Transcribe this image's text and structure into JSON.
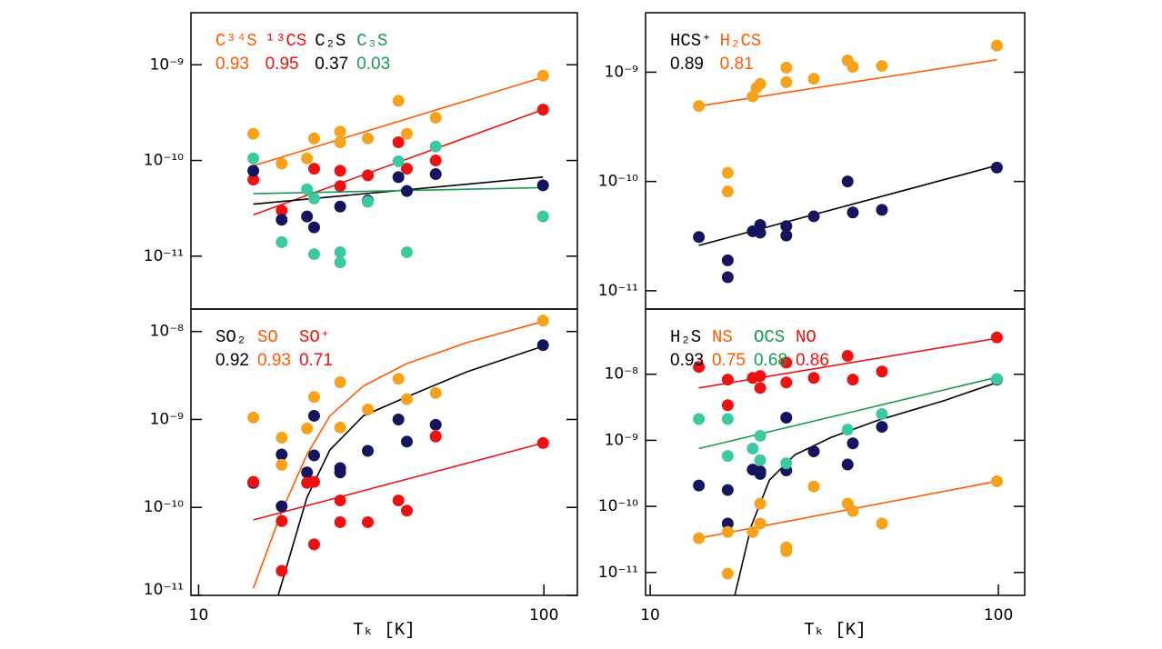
{
  "chart_data": [
    {
      "type": "scatter",
      "xlim": [
        9.5,
        125
      ],
      "ylim": [
        2.8e-12,
        3.5e-09
      ],
      "log": true,
      "yticks": [
        {
          "value": 1e-11,
          "label": "10⁻¹¹"
        },
        {
          "value": 1e-10,
          "label": "10⁻¹⁰"
        },
        {
          "value": 1e-09,
          "label": "10⁻⁹"
        }
      ],
      "series": [
        {
          "name": "C³⁴S",
          "color": "#f7a21b",
          "line_color": "#ff5a00",
          "r": 0.93,
          "x": [
            14.4,
            17.4,
            20.6,
            21.6,
            25.7,
            25.7,
            30.9,
            37.9,
            40.1,
            48.6,
            99.4
          ],
          "values": [
            1.9e-10,
            9.3e-11,
            1.05e-10,
            1.7e-10,
            2e-10,
            1.55e-10,
            1.7e-10,
            4.2e-10,
            1.9e-10,
            2.8e-10,
            7.7e-10
          ],
          "fit_x": [
            14.4,
            99.4
          ],
          "fit_values": [
            8.8e-11,
            7.4e-10
          ]
        },
        {
          "name": "¹³CS",
          "color": "#ee1111",
          "line_color": "#ee1111",
          "r": 0.95,
          "x": [
            14.4,
            17.4,
            21.6,
            25.7,
            25.7,
            30.9,
            37.9,
            40.1,
            48.6,
            99.4
          ],
          "values": [
            6.3e-11,
            3e-11,
            8.2e-11,
            7.8e-11,
            5.4e-11,
            7e-11,
            1.55e-10,
            8.2e-11,
            1e-10,
            3.4e-10
          ],
          "fit_x": [
            14.4,
            99.4
          ],
          "fit_values": [
            2.7e-11,
            3.4e-10
          ]
        },
        {
          "name": "C₂S",
          "color": "#15155e",
          "line_color": "#000000",
          "r": 0.37,
          "x": [
            14.4,
            17.4,
            20.6,
            21.6,
            25.7,
            30.9,
            37.9,
            40.1,
            48.6,
            99.4
          ],
          "values": [
            7.8e-11,
            2.4e-11,
            2.6e-11,
            2e-11,
            3.3e-11,
            3.8e-11,
            6.7e-11,
            4.8e-11,
            7.2e-11,
            5.5e-11
          ],
          "fit_x": [
            14.4,
            99.4
          ],
          "fit_values": [
            3.5e-11,
            6.7e-11
          ]
        },
        {
          "name": "C₃S",
          "color": "#3cc9a0",
          "line_color": "#1a9a50",
          "r": 0.03,
          "x": [
            14.4,
            17.4,
            20.6,
            21.6,
            21.6,
            25.7,
            25.7,
            30.9,
            40.1,
            37.9,
            48.6,
            99.4
          ],
          "values": [
            1.05e-10,
            1.4e-11,
            5e-11,
            1.05e-11,
            4e-11,
            1.1e-11,
            8.6e-12,
            3.7e-11,
            1.1e-11,
            9.8e-11,
            1.4e-10,
            2.6e-11
          ],
          "fit_x": [
            14.4,
            99.4
          ],
          "fit_values": [
            4.5e-11,
            5.2e-11
          ]
        }
      ]
    },
    {
      "type": "scatter",
      "xlim": [
        9.7,
        119
      ],
      "ylim": [
        6.8e-12,
        3.5e-09
      ],
      "log": true,
      "yticks": [
        {
          "value": 1e-11,
          "label": "10⁻¹¹"
        },
        {
          "value": 1e-10,
          "label": "10⁻¹⁰"
        },
        {
          "value": 1e-09,
          "label": "10⁻⁹"
        }
      ],
      "series": [
        {
          "name": "HCS⁺",
          "color": "#15155e",
          "line_color": "#000000",
          "r": 0.89,
          "x": [
            13.8,
            16.7,
            16.7,
            19.7,
            20.7,
            20.7,
            24.6,
            24.6,
            29.5,
            36.9,
            38.2,
            46.3,
            99
          ],
          "values": [
            3.1e-11,
            1.9e-11,
            1.33e-11,
            3.5e-11,
            4e-11,
            3.4e-11,
            3.9e-11,
            3.2e-11,
            4.8e-11,
            1e-10,
            5.2e-11,
            5.5e-11,
            1.34e-10
          ],
          "fit_x": [
            13.8,
            99
          ],
          "fit_values": [
            2.6e-11,
            1.4e-10
          ]
        },
        {
          "name": "H₂CS",
          "color": "#f7a21b",
          "line_color": "#ff5a00",
          "r": 0.81,
          "x": [
            13.8,
            19.7,
            20.2,
            20.7,
            24.6,
            24.6,
            29.5,
            36.9,
            38.2,
            46.3,
            99,
            16.7,
            16.7
          ],
          "values": [
            4.9e-10,
            6e-10,
            7.2e-10,
            7.8e-10,
            1.1e-09,
            8.1e-10,
            8.7e-10,
            1.28e-09,
            1.12e-09,
            1.14e-09,
            1.75e-09,
            1.2e-10,
            8.1e-11
          ],
          "fit_x": [
            13.8,
            99
          ],
          "fit_values": [
            4.9e-10,
            1.3e-09
          ]
        }
      ]
    },
    {
      "type": "scatter",
      "xlim": [
        9.5,
        125
      ],
      "ylim": [
        1e-11,
        1.8e-08
      ],
      "log": true,
      "xticks": [
        10,
        100
      ],
      "xlabel": "Tₖ [K]",
      "yticks": [
        {
          "value": 1e-11,
          "label": "10⁻¹¹"
        },
        {
          "value": 1e-10,
          "label": "10⁻¹⁰"
        },
        {
          "value": 1e-09,
          "label": "10⁻⁹"
        },
        {
          "value": 1e-08,
          "label": "10⁻⁸"
        }
      ],
      "series": [
        {
          "name": "SO₂",
          "color": "#15155e",
          "line_color": "#000000",
          "r": 0.92,
          "x": [
            14.4,
            17.4,
            17.4,
            20.6,
            21.6,
            21.6,
            25.7,
            25.7,
            30.9,
            37.9,
            40.1,
            48.6,
            99.4
          ],
          "values": [
            1.9e-10,
            4e-10,
            1.03e-10,
            2.5e-10,
            1.1e-09,
            3.9e-10,
            2.8e-10,
            2.5e-10,
            4.4e-10,
            1e-09,
            5.6e-10,
            8.7e-10,
            7e-09
          ],
          "fit_x": [
            17,
            20.6,
            24,
            30,
            40,
            60,
            99.4
          ],
          "fit_values": [
            1e-11,
            1.3e-10,
            4.5e-10,
            1.1e-09,
            1.8e-09,
            3.5e-09,
            6.8e-09
          ]
        },
        {
          "name": "SO",
          "color": "#f7a21b",
          "line_color": "#ff5a00",
          "r": 0.93,
          "x": [
            14.4,
            17.4,
            17.4,
            20.6,
            21.6,
            25.7,
            25.7,
            30.9,
            37.9,
            40.1,
            48.6,
            48.6,
            99.4
          ],
          "values": [
            1.05e-09,
            6.2e-10,
            3.05e-10,
            7.9e-10,
            1.8e-09,
            2.65e-09,
            8.1e-10,
            1.3e-09,
            2.9e-09,
            1.7e-09,
            2e-09,
            6.5e-10,
            1.33e-08
          ],
          "fit_x": [
            14.4,
            17.4,
            20.6,
            24,
            30,
            40,
            60,
            99.4
          ],
          "fit_values": [
            1.2e-11,
            9e-11,
            4e-10,
            1.1e-09,
            2.4e-09,
            4.3e-09,
            7.5e-09,
            1.3e-08
          ]
        },
        {
          "name": "SO⁺",
          "color": "#ee1111",
          "line_color": "#ee1111",
          "r": 0.71,
          "x": [
            14.4,
            17.4,
            17.4,
            20.6,
            21.6,
            21.6,
            25.7,
            25.7,
            30.9,
            37.9,
            40.1,
            48.6,
            99.4
          ],
          "values": [
            1.95e-10,
            7e-11,
            1.9e-11,
            1.9e-10,
            1.95e-10,
            3.8e-11,
            1.2e-10,
            6.8e-11,
            6.8e-11,
            1.2e-10,
            9.2e-11,
            6.4e-10,
            5.4e-10
          ],
          "fit_x": [
            14.4,
            99.4
          ],
          "fit_values": [
            7.2e-11,
            5.4e-10
          ]
        }
      ]
    },
    {
      "type": "scatter",
      "xlim": [
        9.7,
        119
      ],
      "ylim": [
        4.5e-12,
        9.7e-08
      ],
      "log": true,
      "xticks": [
        10,
        100
      ],
      "xlabel": "Tₖ [K]",
      "yticks": [
        {
          "value": 1e-11,
          "label": "10⁻¹¹"
        },
        {
          "value": 1e-10,
          "label": "10⁻¹⁰"
        },
        {
          "value": 1e-09,
          "label": "10⁻⁹"
        },
        {
          "value": 1e-08,
          "label": "10⁻⁸"
        }
      ],
      "series": [
        {
          "name": "H₂S",
          "color": "#15155e",
          "line_color": "#000000",
          "r": 0.93,
          "x": [
            13.8,
            16.7,
            16.7,
            19.7,
            20.7,
            20.7,
            24.6,
            24.6,
            29.5,
            36.9,
            38.2,
            46.3,
            99
          ],
          "values": [
            2.07e-10,
            1.77e-10,
            5.5e-11,
            3.6e-10,
            3.4e-10,
            3.1e-10,
            2.2e-09,
            3.5e-10,
            6.8e-10,
            4.3e-10,
            9e-10,
            1.6e-09,
            8.3e-09
          ],
          "fit_x": [
            17.5,
            19.5,
            22,
            26,
            33,
            45,
            70,
            99
          ],
          "fit_values": [
            4.5e-12,
            5e-11,
            2.5e-10,
            6e-10,
            1.1e-09,
            2e-09,
            4e-09,
            7.5e-09
          ]
        },
        {
          "name": "NS",
          "color": "#f7a21b",
          "line_color": "#ff5a00",
          "r": 0.75,
          "x": [
            13.8,
            16.7,
            16.7,
            19.7,
            20.7,
            20.7,
            24.6,
            24.6,
            29.5,
            36.9,
            38.2,
            46.3,
            99
          ],
          "values": [
            3.3e-11,
            9.6e-12,
            4.1e-11,
            4.1e-11,
            1.1e-10,
            5.5e-11,
            2.4e-11,
            2.1e-11,
            2e-10,
            1.1e-10,
            8.5e-11,
            5.5e-11,
            2.4e-10
          ],
          "fit_x": [
            13.8,
            99
          ],
          "fit_values": [
            3.3e-11,
            2.4e-10
          ]
        },
        {
          "name": "OCS",
          "color": "#3cc9a0",
          "line_color": "#1a9a50",
          "r": 0.68,
          "x": [
            13.8,
            16.7,
            16.7,
            19.7,
            20.7,
            20.7,
            24.6,
            36.9,
            46.3,
            99
          ],
          "values": [
            2.1e-09,
            2.1e-09,
            5.8e-10,
            7.5e-10,
            1.17e-09,
            5e-10,
            4.5e-10,
            1.45e-09,
            2.5e-09,
            8.5e-09
          ],
          "fit_x": [
            13.8,
            99
          ],
          "fit_values": [
            7.5e-10,
            9e-09
          ]
        },
        {
          "name": "NO",
          "color": "#ee1111",
          "line_color": "#ee1111",
          "r": 0.86,
          "x": [
            13.8,
            16.7,
            16.7,
            19.7,
            20.7,
            20.7,
            24.6,
            24.6,
            29.5,
            36.9,
            38.2,
            46.3,
            99
          ],
          "values": [
            1.29e-08,
            8.3e-09,
            3.4e-09,
            8.8e-09,
            9.4e-09,
            6.2e-09,
            1.5e-08,
            7.5e-09,
            8.8e-09,
            1.9e-08,
            8.3e-09,
            1.1e-08,
            3.6e-08
          ],
          "fit_x": [
            13.8,
            99
          ],
          "fit_values": [
            6.2e-09,
            3.5e-08
          ]
        }
      ]
    }
  ]
}
